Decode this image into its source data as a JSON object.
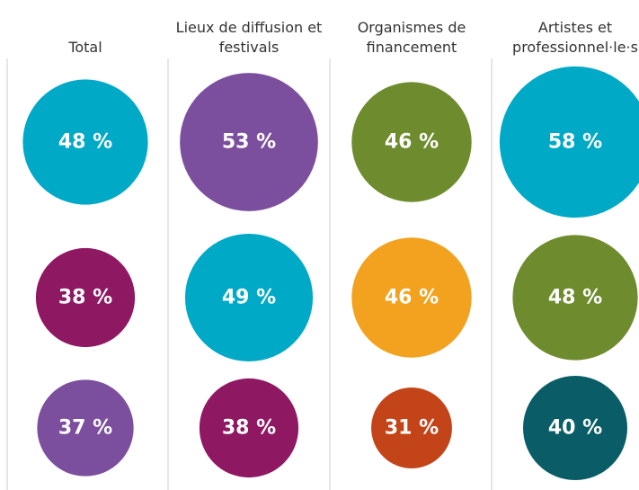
{
  "chart_data": {
    "type": "bubble",
    "columns": [
      {
        "name": "Total",
        "values": [
          48,
          38,
          37
        ],
        "value_labels": [
          "48 %",
          "38 %",
          "37 %"
        ],
        "colors": [
          "#00a9c6",
          "#8e1862",
          "#7b4f9e"
        ]
      },
      {
        "name": "Lieux de diffusion et festivals",
        "values": [
          53,
          49,
          38
        ],
        "value_labels": [
          "53 %",
          "49 %",
          "38 %"
        ],
        "colors": [
          "#7b4f9e",
          "#00a9c6",
          "#8e1862"
        ]
      },
      {
        "name": "Organismes de financement",
        "values": [
          46,
          46,
          31
        ],
        "value_labels": [
          "46 %",
          "46 %",
          "31 %"
        ],
        "colors": [
          "#6e8b2e",
          "#f2a21e",
          "#c4441a"
        ]
      },
      {
        "name": "Artistes et professionnel·le·s",
        "values": [
          58,
          48,
          40
        ],
        "value_labels": [
          "58 %",
          "48 %",
          "40 %"
        ],
        "colors": [
          "#00a9c6",
          "#6e8b2e",
          "#0a5d66"
        ]
      }
    ]
  }
}
